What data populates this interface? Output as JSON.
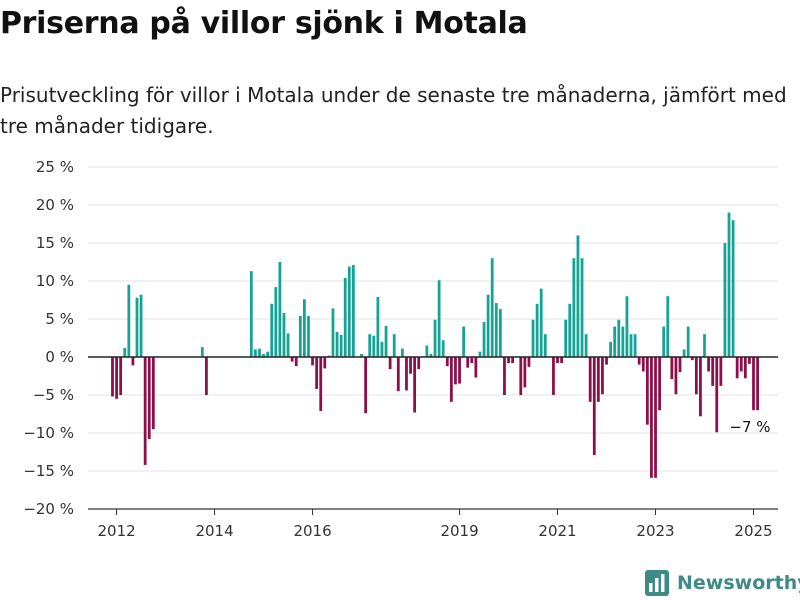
{
  "title": "Priserna på villor sjönk i Motala",
  "subtitle": "Prisutveckling för villor i Motala under de senaste tre månaderna, jämfört med tre månader tidigare.",
  "brand": {
    "name": "Newsworthy",
    "logo_icon": "bar-chart-logo-icon"
  },
  "chart_data": {
    "type": "bar",
    "xlabel": "",
    "ylabel": "",
    "ylim": [
      -20,
      25
    ],
    "y_ticks": [
      "25 %",
      "20 %",
      "15 %",
      "10 %",
      "5 %",
      "0 %",
      "−5 %",
      "−10 %",
      "−15 %",
      "−20 %"
    ],
    "y_tick_values": [
      25,
      20,
      15,
      10,
      5,
      0,
      -5,
      -10,
      -15,
      -20
    ],
    "x_ticks": [
      {
        "label": "2012",
        "value": "2012-01"
      },
      {
        "label": "2014",
        "value": "2014-01"
      },
      {
        "label": "2016",
        "value": "2016-01"
      },
      {
        "label": "2019",
        "value": "2019-01"
      },
      {
        "label": "2021",
        "value": "2021-01"
      },
      {
        "label": "2023",
        "value": "2023-01"
      },
      {
        "label": "2025",
        "value": "2025-01"
      }
    ],
    "x_range": [
      "2011-06",
      "2025-07"
    ],
    "grid": true,
    "positive_color": "#16a396",
    "negative_color": "#8e0e4a",
    "annotation": {
      "text": "−7 %",
      "x": "2024-12",
      "y": -7
    },
    "bars": [
      {
        "x": "2011-12",
        "y": -5.2
      },
      {
        "x": "2012-01",
        "y": -5.5
      },
      {
        "x": "2012-02",
        "y": -5.0
      },
      {
        "x": "2012-03",
        "y": 1.2
      },
      {
        "x": "2012-04",
        "y": 9.5
      },
      {
        "x": "2012-05",
        "y": -1.1
      },
      {
        "x": "2012-06",
        "y": 7.8
      },
      {
        "x": "2012-07",
        "y": 8.2
      },
      {
        "x": "2012-08",
        "y": -14.2
      },
      {
        "x": "2012-09",
        "y": -10.8
      },
      {
        "x": "2012-10",
        "y": -9.5
      },
      {
        "x": "2013-10",
        "y": 1.3
      },
      {
        "x": "2013-11",
        "y": -5.0
      },
      {
        "x": "2014-10",
        "y": 11.3
      },
      {
        "x": "2014-11",
        "y": 1.0
      },
      {
        "x": "2014-12",
        "y": 1.1
      },
      {
        "x": "2015-01",
        "y": 0.4
      },
      {
        "x": "2015-02",
        "y": 0.7
      },
      {
        "x": "2015-03",
        "y": 7.0
      },
      {
        "x": "2015-04",
        "y": 9.2
      },
      {
        "x": "2015-05",
        "y": 12.5
      },
      {
        "x": "2015-06",
        "y": 5.8
      },
      {
        "x": "2015-07",
        "y": 3.1
      },
      {
        "x": "2015-08",
        "y": -0.6
      },
      {
        "x": "2015-09",
        "y": -1.2
      },
      {
        "x": "2015-10",
        "y": 5.4
      },
      {
        "x": "2015-11",
        "y": 7.6
      },
      {
        "x": "2015-12",
        "y": 5.4
      },
      {
        "x": "2016-01",
        "y": -1.1
      },
      {
        "x": "2016-02",
        "y": -4.2
      },
      {
        "x": "2016-03",
        "y": -7.1
      },
      {
        "x": "2016-04",
        "y": -1.5
      },
      {
        "x": "2016-05",
        "y": 0.2
      },
      {
        "x": "2016-06",
        "y": 6.4
      },
      {
        "x": "2016-07",
        "y": 3.3
      },
      {
        "x": "2016-08",
        "y": 2.9
      },
      {
        "x": "2016-09",
        "y": 10.4
      },
      {
        "x": "2016-10",
        "y": 11.9
      },
      {
        "x": "2016-11",
        "y": 12.1
      },
      {
        "x": "2017-01",
        "y": 0.4
      },
      {
        "x": "2017-02",
        "y": -7.4
      },
      {
        "x": "2017-03",
        "y": 3.0
      },
      {
        "x": "2017-04",
        "y": 2.8
      },
      {
        "x": "2017-05",
        "y": 7.9
      },
      {
        "x": "2017-06",
        "y": 2.0
      },
      {
        "x": "2017-07",
        "y": 4.1
      },
      {
        "x": "2017-08",
        "y": -1.6
      },
      {
        "x": "2017-09",
        "y": 3.0
      },
      {
        "x": "2017-10",
        "y": -4.5
      },
      {
        "x": "2017-11",
        "y": 1.1
      },
      {
        "x": "2017-12",
        "y": -4.4
      },
      {
        "x": "2018-01",
        "y": -2.2
      },
      {
        "x": "2018-02",
        "y": -7.3
      },
      {
        "x": "2018-03",
        "y": -1.6
      },
      {
        "x": "2018-05",
        "y": 1.5
      },
      {
        "x": "2018-06",
        "y": 0.4
      },
      {
        "x": "2018-07",
        "y": 4.9
      },
      {
        "x": "2018-08",
        "y": 10.1
      },
      {
        "x": "2018-09",
        "y": 2.2
      },
      {
        "x": "2018-10",
        "y": -1.2
      },
      {
        "x": "2018-11",
        "y": -5.9
      },
      {
        "x": "2018-12",
        "y": -3.6
      },
      {
        "x": "2019-01",
        "y": -3.5
      },
      {
        "x": "2019-02",
        "y": 4.0
      },
      {
        "x": "2019-03",
        "y": -1.4
      },
      {
        "x": "2019-04",
        "y": -0.8
      },
      {
        "x": "2019-05",
        "y": -2.7
      },
      {
        "x": "2019-06",
        "y": 0.7
      },
      {
        "x": "2019-07",
        "y": 4.6
      },
      {
        "x": "2019-08",
        "y": 8.2
      },
      {
        "x": "2019-09",
        "y": 13.0
      },
      {
        "x": "2019-10",
        "y": 7.1
      },
      {
        "x": "2019-11",
        "y": 6.3
      },
      {
        "x": "2019-12",
        "y": -5.0
      },
      {
        "x": "2020-01",
        "y": -0.8
      },
      {
        "x": "2020-02",
        "y": -0.8
      },
      {
        "x": "2020-04",
        "y": -5.0
      },
      {
        "x": "2020-05",
        "y": -4.0
      },
      {
        "x": "2020-06",
        "y": -1.3
      },
      {
        "x": "2020-07",
        "y": 4.9
      },
      {
        "x": "2020-08",
        "y": 7.0
      },
      {
        "x": "2020-09",
        "y": 9.0
      },
      {
        "x": "2020-10",
        "y": 3.0
      },
      {
        "x": "2020-12",
        "y": -5.0
      },
      {
        "x": "2021-01",
        "y": -0.8
      },
      {
        "x": "2021-02",
        "y": -0.8
      },
      {
        "x": "2021-03",
        "y": 4.9
      },
      {
        "x": "2021-04",
        "y": 7.0
      },
      {
        "x": "2021-05",
        "y": 13.0
      },
      {
        "x": "2021-06",
        "y": 16.0
      },
      {
        "x": "2021-07",
        "y": 13.0
      },
      {
        "x": "2021-08",
        "y": 3.0
      },
      {
        "x": "2021-09",
        "y": -5.9
      },
      {
        "x": "2021-10",
        "y": -12.9
      },
      {
        "x": "2021-11",
        "y": -5.9
      },
      {
        "x": "2021-12",
        "y": -4.9
      },
      {
        "x": "2022-01",
        "y": -1.0
      },
      {
        "x": "2022-02",
        "y": 2.0
      },
      {
        "x": "2022-03",
        "y": 4.0
      },
      {
        "x": "2022-04",
        "y": 4.9
      },
      {
        "x": "2022-05",
        "y": 4.0
      },
      {
        "x": "2022-06",
        "y": 8.0
      },
      {
        "x": "2022-07",
        "y": 3.0
      },
      {
        "x": "2022-08",
        "y": 3.0
      },
      {
        "x": "2022-09",
        "y": -1.0
      },
      {
        "x": "2022-10",
        "y": -1.9
      },
      {
        "x": "2022-11",
        "y": -8.9
      },
      {
        "x": "2022-12",
        "y": -15.9
      },
      {
        "x": "2023-01",
        "y": -15.9
      },
      {
        "x": "2023-02",
        "y": -7.0
      },
      {
        "x": "2023-03",
        "y": 4.0
      },
      {
        "x": "2023-04",
        "y": 8.0
      },
      {
        "x": "2023-05",
        "y": -2.9
      },
      {
        "x": "2023-06",
        "y": -4.9
      },
      {
        "x": "2023-07",
        "y": -2.0
      },
      {
        "x": "2023-08",
        "y": 1.0
      },
      {
        "x": "2023-09",
        "y": 4.0
      },
      {
        "x": "2023-10",
        "y": -0.4
      },
      {
        "x": "2023-11",
        "y": -4.9
      },
      {
        "x": "2023-12",
        "y": -7.8
      },
      {
        "x": "2024-01",
        "y": 3.0
      },
      {
        "x": "2024-02",
        "y": -1.9
      },
      {
        "x": "2024-03",
        "y": -3.8
      },
      {
        "x": "2024-04",
        "y": -9.9
      },
      {
        "x": "2024-05",
        "y": -3.8
      },
      {
        "x": "2024-06",
        "y": 15.0
      },
      {
        "x": "2024-07",
        "y": 19.0
      },
      {
        "x": "2024-08",
        "y": 18.0
      },
      {
        "x": "2024-09",
        "y": -2.8
      },
      {
        "x": "2024-10",
        "y": -1.9
      },
      {
        "x": "2024-11",
        "y": -2.8
      },
      {
        "x": "2024-12",
        "y": -0.9
      },
      {
        "x": "2025-01",
        "y": -7.0
      },
      {
        "x": "2025-02",
        "y": -7.0
      }
    ]
  }
}
